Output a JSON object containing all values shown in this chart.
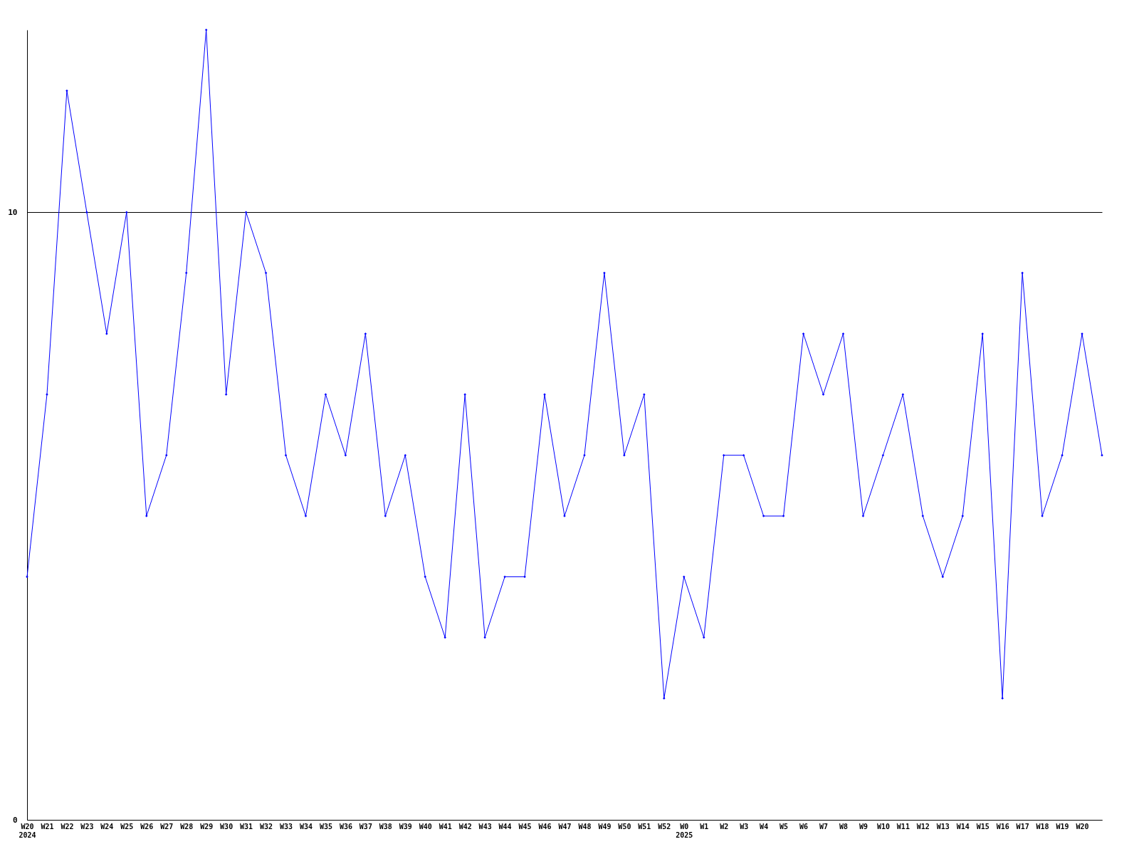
{
  "chart_data": {
    "type": "line",
    "categories": [
      "W20\n2024",
      "W21",
      "W22",
      "W23",
      "W24",
      "W25",
      "W26",
      "W27",
      "W28",
      "W29",
      "W30",
      "W31",
      "W32",
      "W33",
      "W34",
      "W35",
      "W36",
      "W37",
      "W38",
      "W39",
      "W40",
      "W41",
      "W42",
      "W43",
      "W44",
      "W45",
      "W46",
      "W47",
      "W48",
      "W49",
      "W50",
      "W51",
      "W52",
      "W0\n2025",
      "W1",
      "W2",
      "W3",
      "W4",
      "W5",
      "W6",
      "W7",
      "W8",
      "W9",
      "W10",
      "W11",
      "W12",
      "W13",
      "W14",
      "W15",
      "W16",
      "W17",
      "W18",
      "W19",
      "W20",
      null
    ],
    "series": [
      {
        "color": "#0000ff",
        "values": [
          4,
          7,
          12,
          10,
          8,
          10,
          5,
          6,
          9,
          13,
          7,
          10,
          9,
          6,
          5,
          7,
          6,
          8,
          5,
          6,
          4,
          3,
          7,
          3,
          4,
          4,
          7,
          5,
          6,
          9,
          6,
          7,
          2,
          4,
          3,
          6,
          6,
          5,
          5,
          8,
          7,
          8,
          5,
          6,
          7,
          5,
          4,
          5,
          8,
          2,
          9,
          5,
          6,
          8,
          6
        ]
      }
    ],
    "ylim": [
      0,
      13
    ],
    "yticks": [
      0,
      10
    ],
    "grid": "y",
    "marker": "diamond",
    "line_style": "solid"
  }
}
